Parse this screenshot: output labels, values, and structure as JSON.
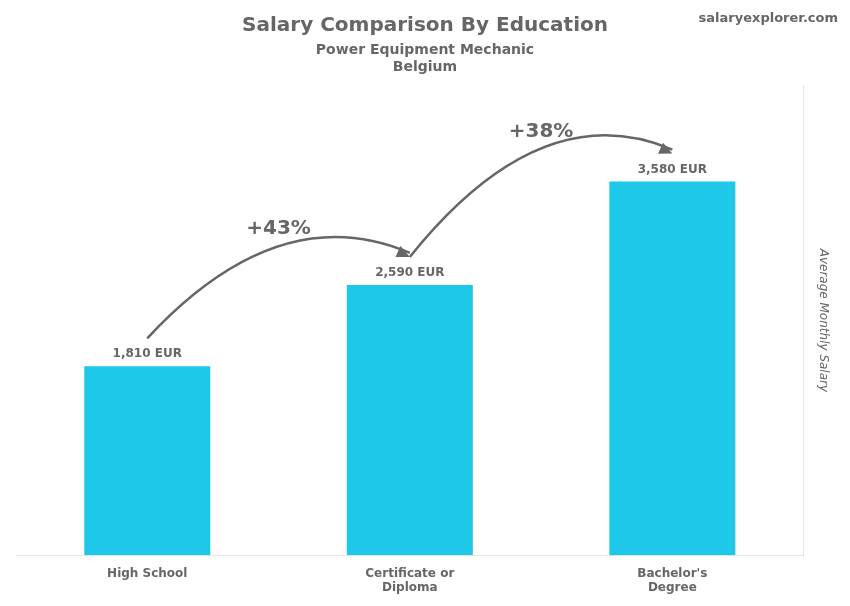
{
  "chart_data": {
    "type": "bar",
    "title": "Salary Comparison By Education",
    "subtitle": [
      "Power Equipment Mechanic",
      "Belgium"
    ],
    "categories": [
      "High School",
      "Certificate or\nDiploma",
      "Bachelor's\nDegree"
    ],
    "values": [
      1810,
      2590,
      3580
    ],
    "value_labels": [
      "1,810 EUR",
      "2,590 EUR",
      "3,580 EUR"
    ],
    "data_labels": true,
    "color": "#1ec8e8",
    "ylabel": "Average Monthly Salary",
    "ylim": [
      0,
      4500
    ],
    "grid": false,
    "tick_labels": "x",
    "annotations": [
      {
        "text": "+43%",
        "from": "High School",
        "to": "Certificate or\nDiploma"
      },
      {
        "text": "+38%",
        "from": "Certificate or\nDiploma",
        "to": "Bachelor's\nDegree"
      },
      {
        "text": "salaryexplorer.com"
      }
    ]
  }
}
